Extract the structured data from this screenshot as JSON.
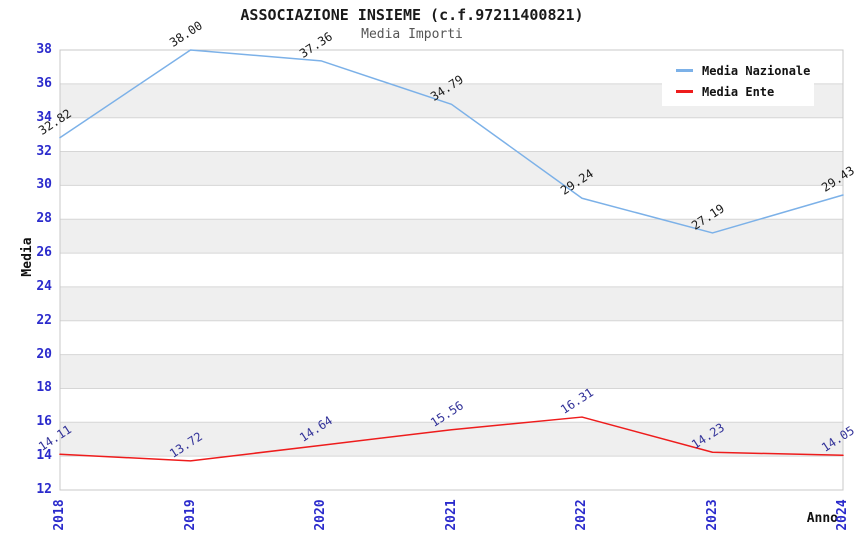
{
  "chart_data": {
    "type": "line",
    "title": "ASSOCIAZIONE INSIEME (c.f.97211400821)",
    "subtitle": "Media Importi",
    "xlabel": "Anno",
    "ylabel": "Media",
    "categories": [
      "2018",
      "2019",
      "2020",
      "2021",
      "2022",
      "2023",
      "2024"
    ],
    "series": [
      {
        "name": "Media Nazionale",
        "color": "#7cb1e8",
        "label_color": "#1a1a1a",
        "values": [
          32.82,
          38.0,
          37.36,
          34.79,
          29.24,
          27.19,
          29.43
        ],
        "labels": [
          "32.82",
          "38.00",
          "37.36",
          "34.79",
          "29.24",
          "27.19",
          "29.43"
        ]
      },
      {
        "name": "Media Ente",
        "color": "#ee1c1c",
        "label_color": "#333399",
        "values": [
          14.11,
          13.72,
          14.64,
          15.56,
          16.31,
          14.23,
          14.05
        ],
        "labels": [
          "14.11",
          "13.72",
          "14.64",
          "15.56",
          "16.31",
          "14.23",
          "14.05"
        ]
      }
    ],
    "ylim": [
      12,
      38
    ],
    "ytick_step": 2,
    "grid": true,
    "legend_position": "top-right",
    "colors": {
      "tick_label": "#2b2bcc",
      "band_fill": "#efefef",
      "grid_line": "#d6d6d6",
      "plot_border": "#c8c8c8"
    }
  }
}
